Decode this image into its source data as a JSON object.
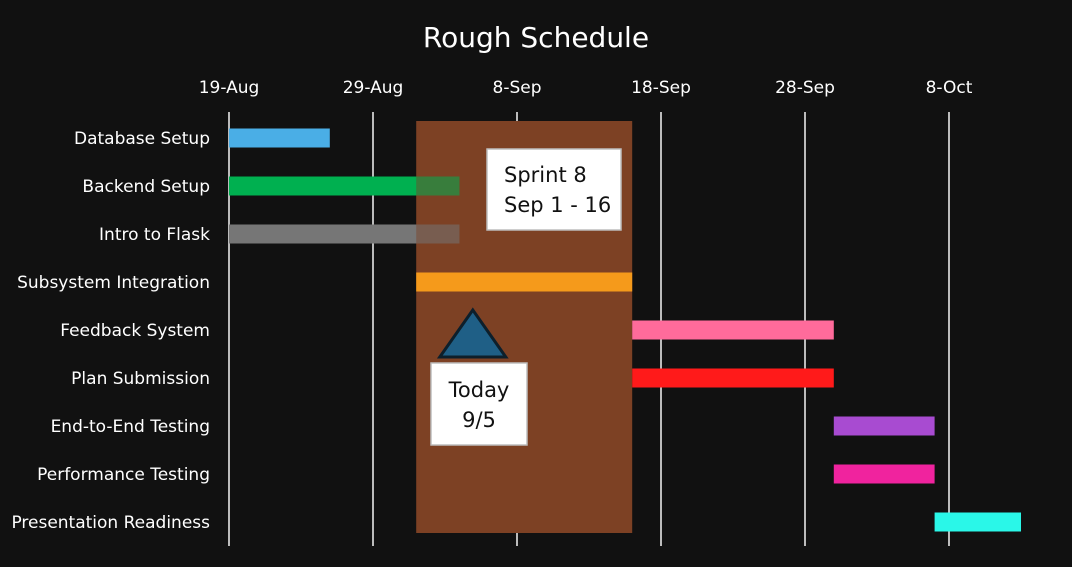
{
  "chart_data": {
    "type": "gantt",
    "title": "Rough Schedule",
    "x_ticks": [
      "19-Aug",
      "29-Aug",
      "8-Sep",
      "18-Sep",
      "28-Sep",
      "8-Oct"
    ],
    "x_range": [
      "2024-08-19",
      "2024-10-13"
    ],
    "grid": true,
    "tasks": [
      {
        "name": "Database Setup",
        "start": "2024-08-19",
        "end": "2024-08-26",
        "color": "#4aaee6"
      },
      {
        "name": "Backend Setup",
        "start": "2024-08-19",
        "end": "2024-09-04",
        "color": "#00b050"
      },
      {
        "name": "Intro to Flask",
        "start": "2024-08-19",
        "end": "2024-09-04",
        "color": "#767676"
      },
      {
        "name": "Subsystem Integration",
        "start": "2024-09-01",
        "end": "2024-09-16",
        "color": "#f59a1b"
      },
      {
        "name": "Feedback System",
        "start": "2024-09-16",
        "end": "2024-09-30",
        "color": "#ff6b9b"
      },
      {
        "name": "Plan Submission",
        "start": "2024-09-16",
        "end": "2024-09-30",
        "color": "#ff1a1a"
      },
      {
        "name": "End-to-End Testing",
        "start": "2024-09-30",
        "end": "2024-10-07",
        "color": "#a84bd1"
      },
      {
        "name": "Performance Testing",
        "start": "2024-09-30",
        "end": "2024-10-07",
        "color": "#f0239e"
      },
      {
        "name": "Presentation Readiness",
        "start": "2024-10-07",
        "end": "2024-10-13",
        "color": "#2af7e8"
      }
    ],
    "annotations": {
      "sprint": {
        "start": "2024-09-01",
        "end": "2024-09-16",
        "color": "#7d4124",
        "label_line1": "Sprint 8",
        "label_line2": "Sep 1 - 16"
      },
      "today": {
        "date": "2024-09-05",
        "marker_color": "#1f5f86",
        "label_line1": "Today",
        "label_line2": "9/5"
      }
    }
  }
}
